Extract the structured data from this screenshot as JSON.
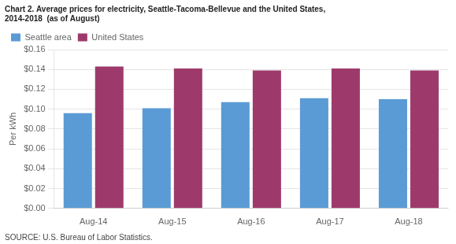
{
  "chart_data": {
    "type": "bar",
    "title": [
      "Chart 2. Average prices for electricity, Seattle-Tacoma-Bellevue and the United States,",
      "2014-2018  (as of August)"
    ],
    "ylabel": "Per kWh",
    "annotations": [
      "SOURCE: U.S. Bureau of Labor Statistics."
    ],
    "categories": [
      "Aug-14",
      "Aug-15",
      "Aug-16",
      "Aug-17",
      "Aug-18"
    ],
    "series": [
      {
        "name": "Seattle area",
        "color": "#5B9BD5",
        "values": [
          0.096,
          0.101,
          0.107,
          0.111,
          0.11
        ]
      },
      {
        "name": "United States",
        "color": "#9E3A6B",
        "values": [
          0.143,
          0.141,
          0.139,
          0.141,
          0.139
        ]
      }
    ],
    "ylim": [
      0,
      0.16
    ],
    "yticks": [
      {
        "value": 0.0,
        "label": "$0.00"
      },
      {
        "value": 0.02,
        "label": "$0.02"
      },
      {
        "value": 0.04,
        "label": "$0.04"
      },
      {
        "value": 0.06,
        "label": "$0.06"
      },
      {
        "value": 0.08,
        "label": "$0.08"
      },
      {
        "value": 0.1,
        "label": "$0.10"
      },
      {
        "value": 0.12,
        "label": "$0.12"
      },
      {
        "value": 0.14,
        "label": "$0.14"
      },
      {
        "value": 0.16,
        "label": "$0.16"
      }
    ],
    "grid": true,
    "legend": "upper left"
  }
}
